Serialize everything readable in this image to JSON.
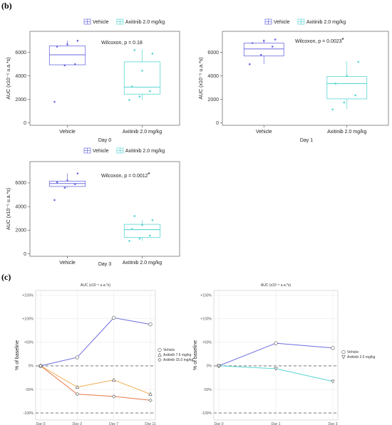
{
  "figure": {
    "label_b": "(b)",
    "label_c": "(c)"
  },
  "chart_data": [
    {
      "type": "box",
      "panel": "b",
      "xlabel": "Day 0",
      "ylabel": "AUC (x10⁻⁵ u.a.*s)",
      "ylim": [
        -200,
        7800
      ],
      "yticks": [
        0,
        2000,
        4000,
        6000
      ],
      "annotation": "Wilcoxon, p = 0.18",
      "annotation_star": "",
      "legend": [
        "Vehicle",
        "Axitinib 2.0 mg/kg"
      ],
      "categories": [
        "Vehicle",
        "Axitinib 2.0 mg/kg"
      ],
      "boxes": [
        {
          "name": "Vehicle",
          "color": "#6b6be0",
          "q1": 4950,
          "median": 5800,
          "q3": 6550,
          "wlo": 4950,
          "whi": 7000,
          "points": [
            1800,
            4900,
            5000,
            6500,
            6700,
            7000
          ]
        },
        {
          "name": "Axitinib 2.0 mg/kg",
          "color": "#58d6d2",
          "q1": 2450,
          "median": 3050,
          "q3": 5200,
          "wlo": 1950,
          "whi": 6250,
          "points": [
            1950,
            2250,
            2700,
            3100,
            4450,
            5900,
            6200
          ]
        }
      ]
    },
    {
      "type": "box",
      "panel": "b",
      "xlabel": "Day 1",
      "ylabel": "AUC (x10⁻⁵ u.a.*s)",
      "ylim": [
        -200,
        7800
      ],
      "yticks": [
        0,
        2000,
        4000,
        6000
      ],
      "annotation": "Wilcoxon, p = 0.0023",
      "annotation_star": "*",
      "legend": [
        "Vehicle",
        "Axitinib 2.0 mg/kg"
      ],
      "categories": [
        "Vehicle",
        "Axitinib 2.0 mg/kg"
      ],
      "boxes": [
        {
          "name": "Vehicle",
          "color": "#6b6be0",
          "q1": 5700,
          "median": 6300,
          "q3": 6800,
          "wlo": 5000,
          "whi": 7100,
          "points": [
            5000,
            5800,
            6500,
            6800,
            7000,
            7100
          ]
        },
        {
          "name": "Axitinib 2.0 mg/kg",
          "color": "#58d6d2",
          "q1": 2050,
          "median": 3350,
          "q3": 3950,
          "wlo": 1200,
          "whi": 5250,
          "points": [
            1150,
            1750,
            2350,
            3350,
            4000,
            5200
          ]
        }
      ]
    },
    {
      "type": "box",
      "panel": "b",
      "xlabel": "Day 3",
      "ylabel": "AUC (x10⁻⁵ u.a.*s)",
      "ylim": [
        -200,
        7800
      ],
      "yticks": [
        0,
        2000,
        4000,
        6000
      ],
      "annotation": "Wilcoxon, p = 0.0012",
      "annotation_star": "*",
      "legend": [
        "Vehicle",
        "Axitinib 2.0 mg/kg"
      ],
      "categories": [
        "Vehicle",
        "Axitinib 2.0 mg/kg"
      ],
      "boxes": [
        {
          "name": "Vehicle",
          "color": "#6b6be0",
          "q1": 5700,
          "median": 5950,
          "q3": 6150,
          "wlo": 5600,
          "whi": 6800,
          "points": [
            4550,
            5600,
            5900,
            6050,
            6200,
            6800
          ]
        },
        {
          "name": "Axitinib 2.0 mg/kg",
          "color": "#58d6d2",
          "q1": 1400,
          "median": 2050,
          "q3": 2500,
          "wlo": 1100,
          "whi": 2850,
          "points": [
            1100,
            1300,
            1550,
            2100,
            2450,
            2850,
            3200
          ]
        }
      ]
    },
    {
      "type": "line",
      "panel": "c",
      "title": "AUC (x10⁻⁵ u.a.*s)",
      "ylabel": "% of baseline",
      "categories": [
        "Day 0",
        "Day 3",
        "Day 7",
        "Day 11"
      ],
      "yticks": [
        -100,
        -50,
        0,
        50,
        100,
        150
      ],
      "ytick_labels": [
        "-100%",
        "-50%",
        "0%",
        "+50%",
        "+100%",
        "+150%"
      ],
      "ylim": [
        -115,
        160
      ],
      "reference_lines": [
        0,
        -100
      ],
      "series": [
        {
          "name": "Vehicle",
          "marker": "circle",
          "color": "#6b6be0",
          "values": [
            0,
            18,
            102,
            88
          ]
        },
        {
          "name": "Axitinib 7.5 mg/kg",
          "marker": "triangle",
          "color": "#f0b25c",
          "values": [
            0,
            -45,
            -30,
            -60
          ]
        },
        {
          "name": "Axitinib 15.0 mg/kg",
          "marker": "diamond",
          "color": "#e6774a",
          "values": [
            0,
            -60,
            -65,
            -73
          ]
        }
      ]
    },
    {
      "type": "line",
      "panel": "c",
      "title": "AUC (x10⁻⁵ u.a.*s)",
      "ylabel": "% of baseline",
      "categories": [
        "Day 0",
        "Day 1",
        "Day 3"
      ],
      "yticks": [
        -100,
        -50,
        0,
        50,
        100,
        150
      ],
      "ytick_labels": [
        "-100%",
        "-50%",
        "0%",
        "+50%",
        "+100%",
        "+150%"
      ],
      "ylim": [
        -115,
        160
      ],
      "reference_lines": [
        0,
        -100
      ],
      "series": [
        {
          "name": "Vehicle",
          "marker": "circle",
          "color": "#6b6be0",
          "values": [
            0,
            48,
            38
          ]
        },
        {
          "name": "Axitinib 2.0 mg/kg",
          "marker": "triangle-down",
          "color": "#58d6d2",
          "values": [
            0,
            -6,
            -33
          ]
        }
      ]
    }
  ]
}
